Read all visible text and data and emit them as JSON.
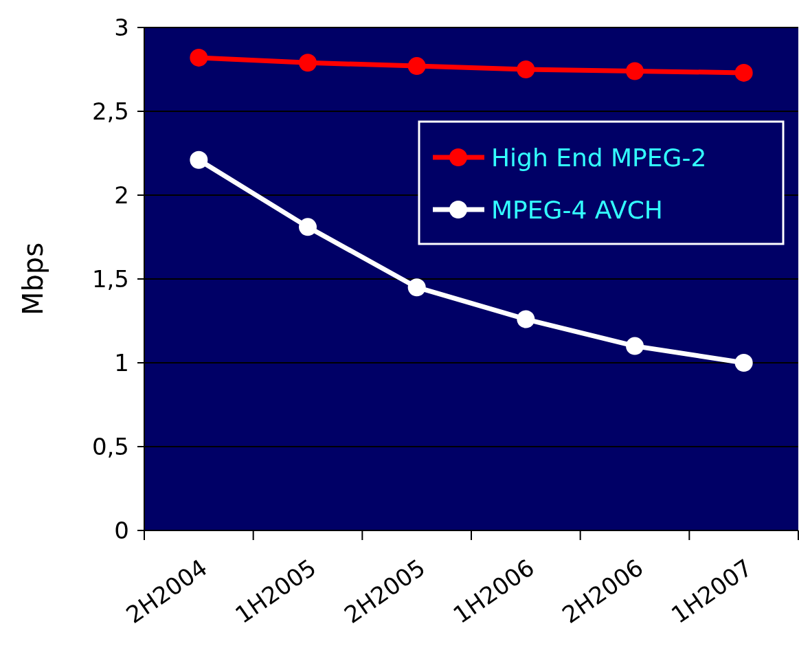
{
  "chart_data": {
    "type": "line",
    "ylabel": "Mbps",
    "categories": [
      "2H2004",
      "1H2005",
      "2H2005",
      "1H2006",
      "2H2006",
      "1H2007"
    ],
    "series": [
      {
        "name": "High End MPEG-2",
        "color": "#ff0000",
        "values": [
          2.82,
          2.79,
          2.77,
          2.75,
          2.74,
          2.73
        ]
      },
      {
        "name": "MPEG-4 AVCH",
        "color": "#ffffff",
        "values": [
          2.21,
          1.81,
          1.45,
          1.26,
          1.1,
          1.0
        ]
      }
    ],
    "ylim": [
      0,
      3
    ],
    "yticks": [
      0,
      {
        "value": 0.5,
        "label": "0,5"
      },
      1,
      {
        "value": 1.5,
        "label": "1,5"
      },
      2,
      {
        "value": 2.5,
        "label": "2,5"
      },
      3
    ],
    "grid": "y",
    "legend": "top right",
    "marker": "circle",
    "line_style": "solid"
  }
}
